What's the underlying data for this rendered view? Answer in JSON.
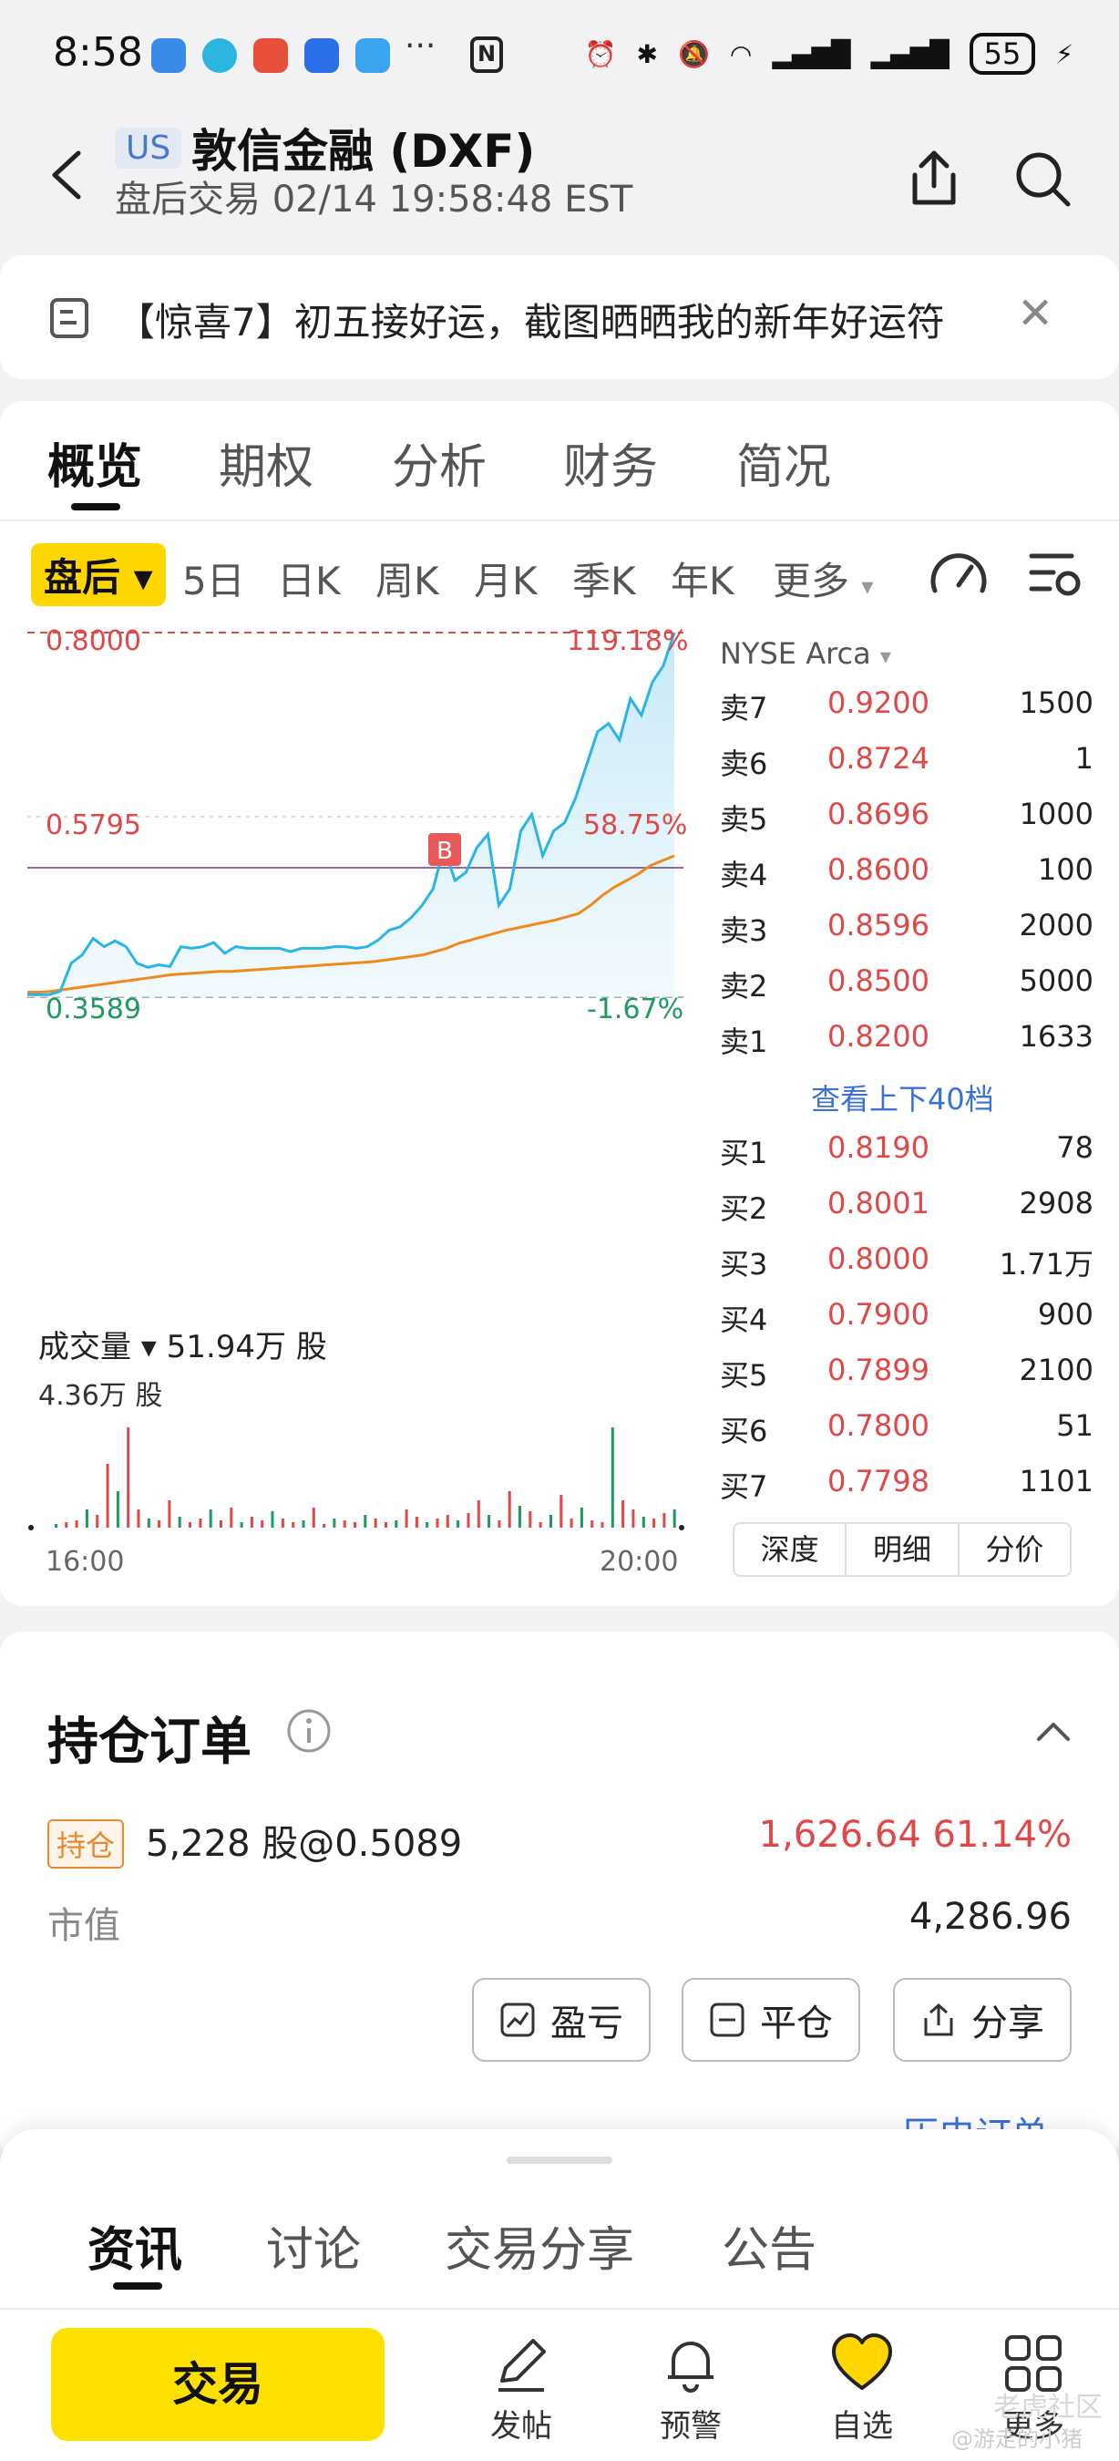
{
  "status_bar": {
    "time": "8:58",
    "more_dots": "···",
    "nfc": "N",
    "battery": "55"
  },
  "header": {
    "market_badge": "US",
    "stock_name": "敦信金融 (DXF)",
    "session_line": "盘后交易 02/14 19:58:48 EST"
  },
  "promo": {
    "text": "【惊喜7】初五接好运，截图晒晒我的新年好运符"
  },
  "tabs": [
    "概览",
    "期权",
    "分析",
    "财务",
    "简况"
  ],
  "periods": [
    "盘后",
    "5日",
    "日K",
    "周K",
    "月K",
    "季K",
    "年K",
    "更多"
  ],
  "chart_labels": {
    "price_high": "0.8000",
    "pct_high": "119.18%",
    "price_mid": "0.5795",
    "pct_mid": "58.75%",
    "price_low": "0.3589",
    "pct_low": "-1.67%",
    "marker": "B"
  },
  "chart_data": {
    "type": "line",
    "title": "",
    "ylim": [
      0.3589,
      0.8
    ],
    "reference_price": 0.365,
    "series": [
      {
        "values": [
          0.365,
          0.365,
          0.366,
          0.368,
          0.37,
          0.372,
          0.374,
          0.376,
          0.378,
          0.38,
          0.382,
          0.384,
          0.386,
          0.387,
          0.388,
          0.389,
          0.39,
          0.39,
          0.391,
          0.392,
          0.393,
          0.394,
          0.395,
          0.396,
          0.397,
          0.398,
          0.399,
          0.4,
          0.401,
          0.402,
          0.404,
          0.406,
          0.408,
          0.41,
          0.414,
          0.418,
          0.424,
          0.428,
          0.432,
          0.436,
          0.44,
          0.443,
          0.446,
          0.449,
          0.452,
          0.456,
          0.46,
          0.47,
          0.482,
          0.492,
          0.5,
          0.508,
          0.518,
          0.524,
          0.53
        ]
      },
      {
        "values": [
          0.362,
          0.362,
          0.362,
          0.366,
          0.4,
          0.41,
          0.43,
          0.42,
          0.427,
          0.42,
          0.4,
          0.395,
          0.398,
          0.396,
          0.42,
          0.418,
          0.42,
          0.425,
          0.412,
          0.42,
          0.418,
          0.418,
          0.418,
          0.418,
          0.414,
          0.418,
          0.418,
          0.418,
          0.42,
          0.42,
          0.418,
          0.42,
          0.428,
          0.44,
          0.444,
          0.455,
          0.47,
          0.49,
          0.54,
          0.5,
          0.51,
          0.54,
          0.556,
          0.47,
          0.49,
          0.56,
          0.58,
          0.53,
          0.56,
          0.57,
          0.6,
          0.64,
          0.68,
          0.69,
          0.67,
          0.72,
          0.7,
          0.74,
          0.76,
          0.8
        ]
      }
    ]
  },
  "orderbook": {
    "exchange": "NYSE Arca",
    "asks": [
      {
        "label": "卖7",
        "price": "0.9200",
        "qty": "1500"
      },
      {
        "label": "卖6",
        "price": "0.8724",
        "qty": "1"
      },
      {
        "label": "卖5",
        "price": "0.8696",
        "qty": "1000"
      },
      {
        "label": "卖4",
        "price": "0.8600",
        "qty": "100"
      },
      {
        "label": "卖3",
        "price": "0.8596",
        "qty": "2000"
      },
      {
        "label": "卖2",
        "price": "0.8500",
        "qty": "5000"
      },
      {
        "label": "卖1",
        "price": "0.8200",
        "qty": "1633"
      }
    ],
    "more_link": "查看上下40档",
    "bids": [
      {
        "label": "买1",
        "price": "0.8190",
        "qty": "78"
      },
      {
        "label": "买2",
        "price": "0.8001",
        "qty": "2908"
      },
      {
        "label": "买3",
        "price": "0.8000",
        "qty": "1.71万"
      },
      {
        "label": "买4",
        "price": "0.7900",
        "qty": "900"
      },
      {
        "label": "买5",
        "price": "0.7899",
        "qty": "2100"
      },
      {
        "label": "买6",
        "price": "0.7800",
        "qty": "51"
      },
      {
        "label": "买7",
        "price": "0.7798",
        "qty": "1101"
      }
    ]
  },
  "volume": {
    "header": "成交量 ▾ 51.94万 股",
    "max_label": "4.36万 股",
    "time_start": "16:00",
    "time_end": "20:00"
  },
  "depth_tabs": [
    "深度",
    "明细",
    "分价"
  ],
  "positions": {
    "title": "持仓订单",
    "badge": "持仓",
    "qty_line": "5,228  股@0.5089",
    "pnl": "1,626.64   61.14%",
    "mv_label": "市值",
    "mv_value": "4,286.96",
    "buttons": [
      "盈亏",
      "平仓",
      "分享"
    ],
    "history_link": "历史订单"
  },
  "news_tabs": [
    "资讯",
    "讨论",
    "交易分享",
    "公告"
  ],
  "bottom_nav": {
    "trade": "交易",
    "items": [
      "发帖",
      "预警",
      "自选",
      "更多"
    ]
  },
  "watermark": "老虎社区",
  "watermark_sub": "@游走的小猪",
  "colors": {
    "accent_yellow": "#ffd600",
    "up_red": "#e04848",
    "down_green": "#1d9a5c",
    "line_blue": "#29b5e8",
    "avg_orange": "#f08a1c",
    "link_blue": "#3a70d8"
  }
}
